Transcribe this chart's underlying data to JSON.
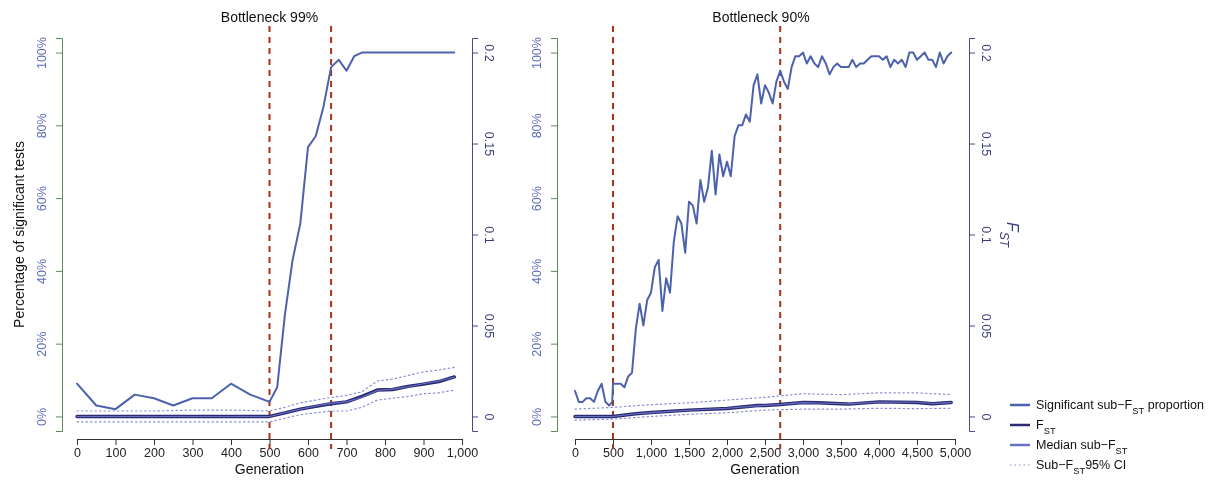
{
  "chart_data": [
    {
      "type": "line",
      "title": "Bottleneck 99%",
      "xlabel": "Generation",
      "ylabel": "Percentage of significant tests",
      "xlim": [
        0,
        1000
      ],
      "xticks": [
        0,
        100,
        200,
        300,
        400,
        500,
        600,
        700,
        800,
        900,
        {
          "value": 1000,
          "label": "1,000"
        }
      ],
      "ylim": [
        -4,
        104
      ],
      "yticks": [
        {
          "value": 0,
          "label": "0%"
        },
        {
          "value": 20,
          "label": "20%"
        },
        {
          "value": 40,
          "label": "40%"
        },
        {
          "value": 60,
          "label": "60%"
        },
        {
          "value": 80,
          "label": "80%"
        },
        {
          "value": 100,
          "label": "100%"
        }
      ],
      "y2lim": [
        -0.008,
        0.208
      ],
      "y2ticks": [
        0,
        0.05,
        0.1,
        0.15,
        0.2
      ],
      "ref_lines": [
        {
          "axis": "x",
          "value": 500,
          "color": "#a3341f",
          "line_style": "dashed"
        },
        {
          "axis": "x",
          "value": 660,
          "color": "#a3341f",
          "line_style": "dashed"
        }
      ],
      "series": [
        {
          "color": "#4d62ad",
          "axis": "y",
          "line_style": "solid",
          "x": [
            0,
            50,
            100,
            150,
            200,
            250,
            300,
            350,
            400,
            450,
            500,
            520,
            540,
            560,
            580,
            600,
            620,
            640,
            660,
            680,
            700,
            720,
            740,
            760,
            780,
            800,
            820,
            840,
            860,
            880,
            900,
            920,
            940,
            960,
            980
          ],
          "values": [
            9,
            3,
            2,
            6,
            5,
            3,
            5,
            5,
            9,
            6,
            4,
            8,
            28,
            43,
            53,
            74,
            77,
            85,
            96,
            98,
            95,
            99,
            100,
            100,
            100,
            100,
            100,
            100,
            100,
            100,
            100,
            100,
            100,
            100,
            100
          ]
        },
        {
          "color": "#2c2b72",
          "axis": "y2",
          "line_style": "solid",
          "x": [
            0,
            100,
            200,
            300,
            400,
            500,
            540,
            580,
            620,
            660,
            700,
            740,
            780,
            820,
            860,
            900,
            940,
            980
          ],
          "values": [
            0,
            0,
            0,
            0,
            0,
            0,
            0.002,
            0.004,
            0.0055,
            0.007,
            0.008,
            0.011,
            0.0145,
            0.0148,
            0.0165,
            0.0178,
            0.0192,
            0.0217
          ]
        },
        {
          "color": "#6872c4",
          "axis": "y2",
          "line_style": "solid",
          "x": [
            0,
            100,
            200,
            300,
            400,
            500,
            540,
            580,
            620,
            660,
            700,
            740,
            780,
            820,
            860,
            900,
            940,
            980
          ],
          "values": [
            0,
            0,
            0,
            0,
            0,
            0,
            0.002,
            0.004,
            0.0057,
            0.0072,
            0.008,
            0.0105,
            0.0143,
            0.015,
            0.0163,
            0.018,
            0.0195,
            0.0215
          ]
        },
        {
          "color": "#8c8fd2",
          "axis": "y2",
          "line_style": "dotted",
          "x": [
            0,
            100,
            200,
            300,
            400,
            500,
            540,
            580,
            620,
            660,
            700,
            740,
            780,
            820,
            860,
            900,
            940,
            980
          ],
          "values": [
            0.003,
            0.003,
            0.003,
            0.0035,
            0.0035,
            0.003,
            0.005,
            0.0075,
            0.009,
            0.0105,
            0.0115,
            0.0135,
            0.0195,
            0.0205,
            0.0225,
            0.0245,
            0.0255,
            0.027
          ]
        },
        {
          "color": "#8c8fd2",
          "axis": "y2",
          "line_style": "dotted",
          "x": [
            0,
            100,
            200,
            300,
            400,
            500,
            540,
            580,
            620,
            660,
            700,
            740,
            780,
            820,
            860,
            900,
            940,
            980
          ],
          "values": [
            -0.003,
            -0.003,
            -0.003,
            -0.003,
            -0.003,
            -0.003,
            -0.001,
            0.001,
            0.002,
            0.003,
            0.003,
            0.005,
            0.009,
            0.01,
            0.011,
            0.0125,
            0.013,
            0.0145
          ]
        }
      ]
    },
    {
      "type": "line",
      "title": "Bottleneck 90%",
      "xlabel": "Generation",
      "y2label": "F$_{ST}$",
      "legend": "bottom right",
      "xlim": [
        0,
        5000
      ],
      "xticks": [
        0,
        500,
        {
          "value": 1000,
          "label": "1,000"
        },
        {
          "value": 1500,
          "label": "1,500"
        },
        {
          "value": 2000,
          "label": "2,000"
        },
        {
          "value": 2500,
          "label": "2,500"
        },
        {
          "value": 3000,
          "label": "3,000"
        },
        {
          "value": 3500,
          "label": "3,500"
        },
        {
          "value": 4000,
          "label": "4,000"
        },
        {
          "value": 4500,
          "label": "4,500"
        },
        {
          "value": 5000,
          "label": "5,000"
        }
      ],
      "ylim": [
        -4,
        104
      ],
      "yticks": [
        {
          "value": 0,
          "label": "0%"
        },
        {
          "value": 20,
          "label": "20%"
        },
        {
          "value": 40,
          "label": "40%"
        },
        {
          "value": 60,
          "label": "60%"
        },
        {
          "value": 80,
          "label": "80%"
        },
        {
          "value": 100,
          "label": "100%"
        }
      ],
      "y2lim": [
        -0.008,
        0.208
      ],
      "y2ticks": [
        0,
        0.05,
        0.1,
        0.15,
        0.2
      ],
      "ref_lines": [
        {
          "axis": "x",
          "value": 500,
          "color": "#a3341f",
          "line_style": "dashed"
        },
        {
          "axis": "x",
          "value": 2700,
          "color": "#a3341f",
          "line_style": "dashed"
        }
      ],
      "series": [
        {
          "name": "Significant sub−F$_{ST}$ proportion",
          "color": "#4d62ad",
          "axis": "y",
          "line_style": "solid",
          "x": [
            0,
            50,
            100,
            150,
            200,
            250,
            300,
            350,
            400,
            450,
            490,
            500,
            550,
            600,
            650,
            700,
            750,
            800,
            850,
            900,
            950,
            1000,
            1050,
            1100,
            1150,
            1200,
            1250,
            1300,
            1350,
            1400,
            1450,
            1500,
            1550,
            1600,
            1650,
            1700,
            1750,
            1800,
            1850,
            1900,
            1950,
            2000,
            2050,
            2100,
            2150,
            2200,
            2250,
            2300,
            2350,
            2400,
            2450,
            2500,
            2550,
            2600,
            2650,
            2700,
            2750,
            2800,
            2850,
            2900,
            2950,
            3000,
            3050,
            3100,
            3150,
            3200,
            3250,
            3300,
            3350,
            3400,
            3450,
            3500,
            3550,
            3600,
            3650,
            3700,
            3750,
            3800,
            3850,
            3900,
            3950,
            4000,
            4050,
            4100,
            4150,
            4200,
            4250,
            4300,
            4350,
            4400,
            4450,
            4500,
            4550,
            4600,
            4650,
            4700,
            4750,
            4800,
            4850,
            4900,
            4950
          ],
          "values": [
            7,
            4,
            4,
            5,
            5,
            4,
            7,
            9,
            4,
            3,
            4,
            9,
            9,
            9,
            8,
            11,
            12,
            24,
            31,
            25,
            32,
            34,
            41,
            43,
            29,
            38,
            34,
            48,
            55,
            53,
            45,
            59,
            58,
            53,
            65,
            59,
            63,
            73,
            61,
            72,
            66,
            70,
            66,
            77,
            80,
            80,
            83,
            81,
            91,
            94,
            86,
            91,
            89,
            86,
            92,
            95,
            92,
            90,
            96,
            99,
            99,
            100,
            97,
            99,
            97,
            96,
            99,
            97,
            94,
            96,
            97,
            96,
            96,
            96,
            98,
            96,
            97,
            97,
            98,
            99,
            99,
            99,
            98,
            99,
            96,
            98,
            97,
            98,
            96,
            100,
            100,
            98,
            99,
            100,
            98,
            98,
            96,
            100,
            97,
            99,
            100
          ]
        },
        {
          "name": "F$_{ST}$",
          "color": "#2c2b72",
          "axis": "y2",
          "line_style": "solid",
          "x": [
            0,
            500,
            800,
            1000,
            1500,
            2000,
            2400,
            2500,
            2700,
            3000,
            3200,
            3500,
            3600,
            4000,
            4500,
            4700,
            4950
          ],
          "values": [
            0,
            0,
            0.0015,
            0.0022,
            0.0035,
            0.0044,
            0.006,
            0.006,
            0.0066,
            0.0077,
            0.0075,
            0.007,
            0.0068,
            0.008,
            0.0077,
            0.007,
            0.0077
          ]
        },
        {
          "name": "Median sub−F$_{ST}$",
          "color": "#6872c4",
          "axis": "y2",
          "line_style": "solid",
          "x": [
            0,
            500,
            800,
            1000,
            1500,
            2000,
            2400,
            2500,
            2700,
            3000,
            3200,
            3500,
            3600,
            4000,
            4500,
            4700,
            4950
          ],
          "values": [
            0,
            0,
            0.0015,
            0.0021,
            0.0034,
            0.0045,
            0.0058,
            0.0061,
            0.0066,
            0.0076,
            0.0074,
            0.0071,
            0.0069,
            0.0079,
            0.0078,
            0.0071,
            0.0076
          ]
        },
        {
          "name": "Sub−F$_{ST}$95% CI",
          "color": "#8c8fd2",
          "axis": "y2",
          "line_style": "dotted",
          "x": [
            0,
            500,
            1000,
            1500,
            2000,
            2500,
            3000,
            3500,
            4000,
            4500,
            4950
          ],
          "values": [
            0.004,
            0.005,
            0.0065,
            0.0075,
            0.009,
            0.0105,
            0.0125,
            0.012,
            0.013,
            0.013,
            0.012
          ]
        },
        {
          "color": "#8c8fd2",
          "axis": "y2",
          "line_style": "dotted",
          "x": [
            0,
            500,
            1000,
            1500,
            2000,
            2500,
            3000,
            3500,
            4000,
            4500,
            4950
          ],
          "values": [
            -0.002,
            -0.0015,
            0,
            0.0012,
            0.002,
            0.0035,
            0.004,
            0.004,
            0.0045,
            0.0043,
            0.0045
          ]
        }
      ]
    }
  ]
}
